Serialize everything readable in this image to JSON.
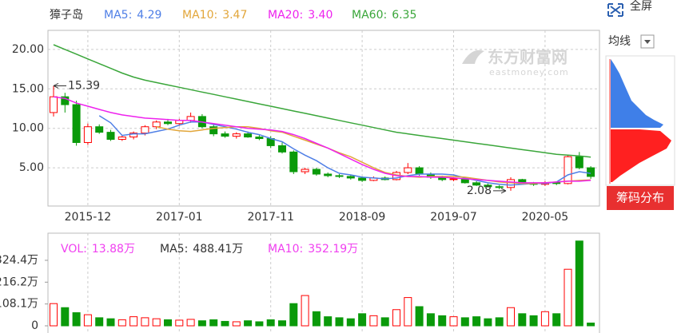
{
  "chart_data": [
    {
      "type": "candlestick",
      "title": "獐子岛",
      "categories": [
        null,
        null,
        null,
        "2015-12",
        null,
        null,
        null,
        null,
        null,
        null,
        null,
        "2017-01",
        null,
        null,
        null,
        null,
        null,
        null,
        null,
        "2017-11",
        null,
        null,
        null,
        null,
        null,
        null,
        null,
        "2018-09",
        null,
        null,
        null,
        null,
        null,
        null,
        null,
        "2019-07",
        null,
        null,
        null,
        null,
        null,
        null,
        null,
        "2020-05",
        null,
        null,
        null,
        null
      ],
      "open": [
        12.0,
        14.0,
        13.0,
        8.2,
        10.2,
        9.5,
        8.6,
        8.9,
        9.4,
        10.2,
        10.8,
        10.6,
        11.0,
        11.5,
        10.2,
        9.3,
        9.0,
        9.3,
        8.9,
        8.7,
        7.8,
        7.0,
        4.5,
        4.8,
        4.2,
        4.0,
        3.9,
        3.7,
        3.4,
        3.7,
        3.5,
        4.4,
        5.0,
        4.2,
        3.8,
        3.5,
        3.6,
        3.1,
        2.8,
        2.6,
        2.5,
        3.5,
        3.0,
        2.9,
        3.1,
        3.0,
        6.4,
        5.0
      ],
      "high": [
        15.39,
        14.5,
        13.5,
        10.6,
        10.5,
        9.8,
        9.1,
        9.6,
        10.4,
        11.0,
        11.2,
        11.2,
        12.0,
        11.8,
        10.5,
        9.6,
        9.5,
        9.6,
        9.2,
        9.0,
        8.2,
        7.2,
        5.0,
        5.0,
        4.4,
        4.2,
        4.1,
        3.9,
        3.9,
        3.9,
        4.6,
        5.6,
        5.2,
        4.4,
        4.0,
        3.8,
        3.7,
        3.3,
        3.0,
        2.8,
        3.8,
        3.6,
        3.2,
        3.3,
        3.2,
        6.6,
        7.0,
        5.2
      ],
      "low": [
        11.5,
        12.0,
        7.8,
        7.9,
        9.3,
        8.4,
        8.4,
        8.6,
        9.1,
        9.9,
        10.4,
        10.3,
        10.7,
        10.0,
        9.0,
        8.8,
        8.7,
        8.8,
        8.5,
        7.5,
        6.8,
        4.2,
        4.2,
        4.0,
        3.8,
        3.7,
        3.5,
        3.2,
        3.3,
        3.4,
        3.4,
        4.2,
        4.0,
        3.6,
        3.3,
        3.3,
        3.0,
        2.7,
        2.5,
        2.3,
        2.08,
        2.9,
        2.7,
        2.7,
        2.8,
        2.9,
        4.8,
        3.6
      ],
      "close": [
        14.0,
        13.0,
        8.2,
        10.2,
        9.5,
        8.6,
        8.9,
        9.4,
        10.2,
        10.8,
        10.6,
        11.0,
        11.5,
        10.2,
        9.3,
        9.0,
        9.3,
        8.9,
        8.7,
        7.8,
        7.0,
        4.5,
        4.8,
        4.2,
        4.0,
        3.9,
        3.7,
        3.4,
        3.7,
        3.5,
        4.4,
        5.0,
        4.2,
        3.8,
        3.5,
        3.6,
        3.1,
        2.8,
        2.6,
        2.5,
        3.5,
        3.0,
        2.9,
        3.1,
        3.0,
        6.4,
        5.0,
        3.9
      ],
      "up_color": "#ff0000",
      "down_color": "#0a9a0a",
      "ylim": [
        0.15,
        22.42
      ],
      "yticks": [
        {
          "value": 5,
          "label": "5.00"
        },
        {
          "value": 10,
          "label": "10.00"
        },
        {
          "value": 15,
          "label": "15.00"
        },
        {
          "value": 20,
          "label": "20.00"
        }
      ],
      "grid": true,
      "series": [
        {
          "name": "MA5",
          "color": "#4f7fe6",
          "values": [
            null,
            null,
            null,
            null,
            11.6,
            10.7,
            9.1,
            9.3,
            9.3,
            9.6,
            9.9,
            10.4,
            10.8,
            10.8,
            10.5,
            10.2,
            9.9,
            9.5,
            9.2,
            8.7,
            8.3,
            7.4,
            6.6,
            5.9,
            5.0,
            4.3,
            4.1,
            3.8,
            3.7,
            3.6,
            3.7,
            4.0,
            4.2,
            4.2,
            4.2,
            4.1,
            3.7,
            3.4,
            3.1,
            2.9,
            2.8,
            2.9,
            3.0,
            3.0,
            3.2,
            4.1,
            4.5,
            4.29
          ]
        },
        {
          "name": "MA10",
          "color": "#e2a63a",
          "values": [
            null,
            null,
            null,
            null,
            null,
            null,
            null,
            null,
            null,
            10.2,
            9.9,
            9.7,
            9.6,
            9.8,
            10.0,
            10.1,
            10.2,
            10.2,
            10.0,
            9.7,
            9.5,
            9.0,
            8.5,
            8.0,
            7.5,
            6.9,
            6.4,
            5.7,
            5.0,
            4.4,
            4.1,
            3.9,
            3.8,
            3.9,
            3.9,
            3.9,
            3.8,
            3.6,
            3.4,
            3.2,
            3.1,
            3.0,
            3.0,
            3.1,
            3.2,
            3.3,
            3.4,
            3.47
          ]
        },
        {
          "name": "MA20",
          "color": "#ee22ee",
          "values": [
            14.0,
            13.8,
            13.2,
            12.8,
            12.4,
            12.0,
            11.7,
            11.5,
            11.3,
            11.2,
            11.1,
            11.0,
            11.0,
            10.8,
            10.6,
            10.4,
            10.2,
            10.0,
            9.9,
            9.8,
            9.6,
            9.2,
            8.7,
            8.1,
            7.5,
            6.8,
            6.1,
            5.4,
            4.8,
            4.3,
            4.0,
            3.9,
            3.9,
            3.8,
            3.8,
            3.7,
            3.6,
            3.5,
            3.4,
            3.3,
            3.2,
            3.1,
            3.1,
            3.1,
            3.2,
            3.3,
            3.3,
            3.4
          ]
        },
        {
          "name": "MA60",
          "color": "#3aa63a",
          "values": [
            20.6,
            20.0,
            19.4,
            18.8,
            18.2,
            17.6,
            17.0,
            16.5,
            16.1,
            15.8,
            15.5,
            15.2,
            14.9,
            14.6,
            14.3,
            14.0,
            13.7,
            13.4,
            13.1,
            12.8,
            12.5,
            12.2,
            11.9,
            11.6,
            11.3,
            11.0,
            10.7,
            10.4,
            10.1,
            9.8,
            9.5,
            9.3,
            9.1,
            8.9,
            8.7,
            8.5,
            8.3,
            8.1,
            7.9,
            7.7,
            7.5,
            7.3,
            7.1,
            6.9,
            6.7,
            6.6,
            6.5,
            6.35
          ]
        }
      ],
      "watermark": {
        "brand": "东方财富网",
        "site": "eastmoney.com"
      },
      "controls": {
        "fullscreen": "全屏",
        "ma_menu": "均线",
        "chip_button": "筹码分布"
      }
    },
    {
      "type": "bar",
      "values": [
        110,
        90,
        65,
        55,
        40,
        35,
        30,
        45,
        40,
        35,
        30,
        28,
        32,
        25,
        30,
        22,
        20,
        25,
        20,
        30,
        25,
        110,
        150,
        70,
        45,
        40,
        35,
        60,
        50,
        40,
        80,
        140,
        95,
        60,
        50,
        45,
        40,
        45,
        35,
        40,
        90,
        60,
        50,
        70,
        60,
        280,
        420,
        13.88
      ],
      "ylim": [
        0,
        435
      ],
      "yticks": [
        {
          "value": 0,
          "label": "0"
        },
        {
          "value": 108.1,
          "label": "108.1万"
        },
        {
          "value": 216.2,
          "label": "216.2万"
        },
        {
          "value": 324.4,
          "label": "324.4万"
        }
      ],
      "legend": [
        {
          "name": "VOL",
          "label": "13.88万",
          "color": "#f040f0"
        },
        {
          "name": "MA5",
          "label": "488.41万",
          "color": "#333333"
        },
        {
          "name": "MA10",
          "label": "352.19万",
          "color": "#f040f0"
        }
      ]
    }
  ]
}
